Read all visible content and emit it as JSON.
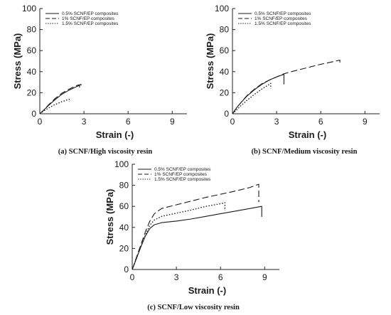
{
  "chart_data": [
    {
      "type": "line",
      "caption": "(a) SCNF/High viscosity resin",
      "xlabel": "Strain (-)",
      "ylabel": "Stress (MPa)",
      "xlim": [
        0,
        10
      ],
      "ylim": [
        0,
        100
      ],
      "xticks": [
        "0",
        "3",
        "6",
        "9"
      ],
      "yticks": [
        "0",
        "20",
        "40",
        "60",
        "80",
        "100"
      ],
      "legend_position": "top-left",
      "series": [
        {
          "name": "0.5% SCNF/EP composites",
          "style": "solid",
          "points": [
            [
              0,
              0
            ],
            [
              0.3,
              4
            ],
            [
              0.6,
              8
            ],
            [
              1.0,
              13
            ],
            [
              1.5,
              18.5
            ],
            [
              2.0,
              22.5
            ],
            [
              2.5,
              25.8
            ],
            [
              2.7,
              27
            ]
          ],
          "failure_drop_to": 25
        },
        {
          "name": "1% SCNF/EP composites",
          "style": "dashed",
          "points": [
            [
              0,
              0
            ],
            [
              0.3,
              4
            ],
            [
              0.6,
              8.5
            ],
            [
              1.0,
              14
            ],
            [
              1.5,
              19.5
            ],
            [
              2.0,
              23.5
            ],
            [
              2.5,
              26.8
            ],
            [
              2.8,
              28
            ]
          ],
          "failure_drop_to": 25.5
        },
        {
          "name": "1.5% SCNF/EP composites",
          "style": "dotted",
          "points": [
            [
              0,
              0
            ],
            [
              0.3,
              3
            ],
            [
              0.6,
              5.5
            ],
            [
              1.0,
              8.5
            ],
            [
              1.5,
              11.5
            ],
            [
              2.0,
              13.8
            ]
          ],
          "failure_drop_to": 11.5
        }
      ]
    },
    {
      "type": "line",
      "caption": "(b) SCNF/Medium viscosity resin",
      "xlabel": "Strain (-)",
      "ylabel": "Stress (MPa)",
      "xlim": [
        0,
        10
      ],
      "ylim": [
        0,
        100
      ],
      "xticks": [
        "0",
        "3",
        "6",
        "9"
      ],
      "yticks": [
        "0",
        "20",
        "40",
        "60",
        "80",
        "100"
      ],
      "legend_position": "top-left",
      "series": [
        {
          "name": "0.5% SCNF/EP composites",
          "style": "solid",
          "points": [
            [
              0,
              0
            ],
            [
              0.3,
              6
            ],
            [
              0.6,
              11
            ],
            [
              1.0,
              17
            ],
            [
              1.5,
              23
            ],
            [
              2.0,
              28
            ],
            [
              2.5,
              32
            ],
            [
              3.0,
              35
            ],
            [
              3.5,
              37.5
            ]
          ],
          "failure_drop_to": 28
        },
        {
          "name": "1% SCNF/EP composites",
          "style": "dashed",
          "points": [
            [
              0,
              0
            ],
            [
              0.3,
              6
            ],
            [
              0.6,
              11
            ],
            [
              1.0,
              17.5
            ],
            [
              1.5,
              23.5
            ],
            [
              2.0,
              28.5
            ],
            [
              2.5,
              32
            ],
            [
              3.0,
              35
            ],
            [
              3.5,
              38
            ],
            [
              4.0,
              40
            ],
            [
              5.0,
              43.5
            ],
            [
              6.0,
              47
            ],
            [
              7.0,
              50
            ],
            [
              7.3,
              51
            ]
          ],
          "failure_drop_to": 47
        },
        {
          "name": "1.5% SCNF/EP composites",
          "style": "dotted",
          "points": [
            [
              0,
              0
            ],
            [
              0.3,
              4
            ],
            [
              0.6,
              8
            ],
            [
              1.0,
              13
            ],
            [
              1.5,
              18.5
            ],
            [
              2.0,
              23.5
            ],
            [
              2.5,
              28
            ],
            [
              2.6,
              29
            ]
          ],
          "failure_drop_to": 24
        }
      ]
    },
    {
      "type": "line",
      "caption": "(c) SCNF/Low viscosity resin",
      "xlabel": "Strain (-)",
      "ylabel": "Stress (MPa)",
      "xlim": [
        0,
        10
      ],
      "ylim": [
        0,
        100
      ],
      "xticks": [
        "0",
        "3",
        "6",
        "9"
      ],
      "yticks": [
        "0",
        "20",
        "40",
        "60",
        "80",
        "100"
      ],
      "legend_position": "top-left",
      "series": [
        {
          "name": "0.5% SCNF/EP composites",
          "style": "solid",
          "points": [
            [
              0,
              0
            ],
            [
              0.3,
              11
            ],
            [
              0.6,
              22
            ],
            [
              0.9,
              32
            ],
            [
              1.2,
              39
            ],
            [
              1.5,
              42.5
            ],
            [
              2.0,
              44.5
            ],
            [
              3.0,
              46
            ],
            [
              4.0,
              48
            ],
            [
              5.0,
              50.5
            ],
            [
              6.0,
              53
            ],
            [
              7.0,
              55.5
            ],
            [
              8.0,
              58
            ],
            [
              8.8,
              60
            ]
          ],
          "failure_drop_to": 50
        },
        {
          "name": "1% SCNF/EP composites",
          "style": "dashed",
          "points": [
            [
              0,
              0
            ],
            [
              0.3,
              12
            ],
            [
              0.6,
              24
            ],
            [
              0.9,
              36
            ],
            [
              1.2,
              46
            ],
            [
              1.5,
              53
            ],
            [
              2.0,
              58
            ],
            [
              3.0,
              61.5
            ],
            [
              4.0,
              65
            ],
            [
              5.0,
              68.5
            ],
            [
              6.0,
              71.5
            ],
            [
              7.0,
              74.5
            ],
            [
              8.0,
              78
            ],
            [
              8.6,
              81
            ]
          ],
          "failure_drop_to": 64
        },
        {
          "name": "1.5% SCNF/EP composites",
          "style": "dotted",
          "points": [
            [
              0,
              0
            ],
            [
              0.3,
              11
            ],
            [
              0.6,
              22
            ],
            [
              0.9,
              33
            ],
            [
              1.2,
              42
            ],
            [
              1.5,
              47
            ],
            [
              2.0,
              50.5
            ],
            [
              3.0,
              53.5
            ],
            [
              4.0,
              56.5
            ],
            [
              5.0,
              60
            ],
            [
              6.0,
              62.5
            ],
            [
              6.3,
              63.5
            ]
          ],
          "failure_drop_to": 56
        }
      ]
    }
  ]
}
